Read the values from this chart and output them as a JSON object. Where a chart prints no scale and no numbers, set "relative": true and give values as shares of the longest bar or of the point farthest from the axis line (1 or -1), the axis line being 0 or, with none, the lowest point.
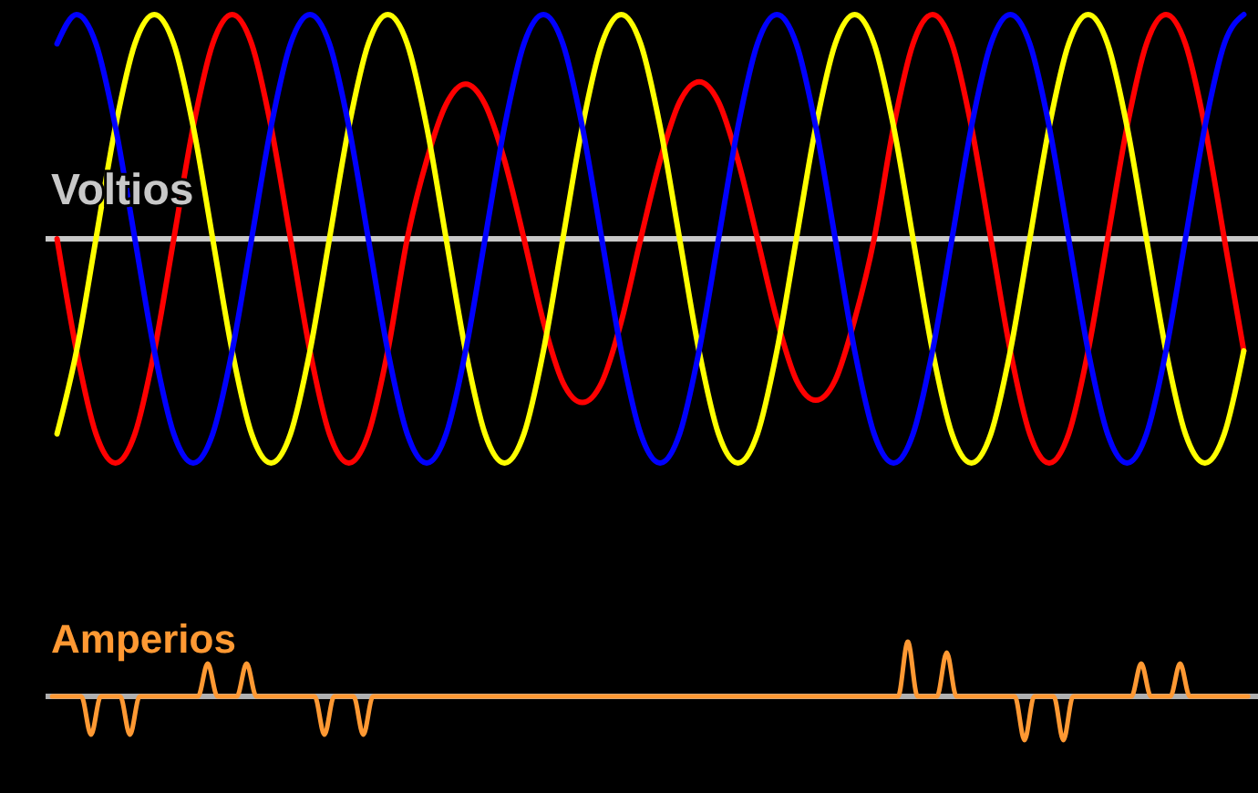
{
  "chart_data": [
    {
      "type": "line",
      "relative": true,
      "ylabel": "Voltios",
      "categories": [
        null,
        null,
        null,
        null,
        null,
        null,
        null,
        null,
        null,
        null,
        null,
        null,
        null,
        null,
        null,
        null,
        null,
        null,
        null,
        null,
        null,
        null,
        null,
        null,
        null,
        null,
        null,
        null,
        null,
        null,
        null,
        null,
        null,
        null,
        null,
        null,
        null,
        null,
        null,
        null,
        null,
        null,
        null,
        null,
        null,
        null,
        null,
        null,
        null,
        null,
        null,
        null,
        null,
        null,
        null,
        null,
        null,
        null,
        null,
        null,
        null,
        null
      ],
      "series": [
        {
          "color": "#ff0000",
          "values": [
            0,
            -0.5,
            -0.87,
            -1,
            -0.87,
            -0.5,
            0,
            0.5,
            0.87,
            1,
            0.87,
            0.5,
            0,
            -0.5,
            -0.87,
            -1,
            -0.87,
            -0.5,
            0,
            0.35,
            0.6,
            0.69,
            0.6,
            0.35,
            0,
            -0.37,
            -0.64,
            -0.73,
            -0.64,
            -0.37,
            0,
            0.35,
            0.61,
            0.7,
            0.61,
            0.35,
            0,
            -0.36,
            -0.63,
            -0.72,
            -0.63,
            -0.36,
            0,
            0.5,
            0.87,
            1,
            0.87,
            0.5,
            0,
            -0.5,
            -0.87,
            -1,
            -0.87,
            -0.5,
            0,
            0.5,
            0.87,
            1,
            0.87,
            0.5,
            0,
            -0.5
          ]
        },
        {
          "color": "#ffff00",
          "values": [
            -0.87,
            -0.5,
            0,
            0.5,
            0.87,
            1,
            0.87,
            0.5,
            0,
            -0.5,
            -0.87,
            -1,
            -0.87,
            -0.5,
            0,
            0.5,
            0.87,
            1,
            0.87,
            0.5,
            0,
            -0.5,
            -0.87,
            -1,
            -0.87,
            -0.5,
            0,
            0.5,
            0.87,
            1,
            0.87,
            0.5,
            0,
            -0.5,
            -0.87,
            -1,
            -0.87,
            -0.5,
            0,
            0.5,
            0.87,
            1,
            0.87,
            0.5,
            0,
            -0.5,
            -0.87,
            -1,
            -0.87,
            -0.5,
            0,
            0.5,
            0.87,
            1,
            0.87,
            0.5,
            0,
            -0.5,
            -0.87,
            -1,
            -0.87,
            -0.5
          ]
        },
        {
          "color": "#0000ff",
          "values": [
            0.87,
            1,
            0.87,
            0.5,
            0,
            -0.5,
            -0.87,
            -1,
            -0.87,
            -0.5,
            0,
            0.5,
            0.87,
            1,
            0.87,
            0.5,
            0,
            -0.5,
            -0.87,
            -1,
            -0.87,
            -0.5,
            0,
            0.5,
            0.87,
            1,
            0.87,
            0.5,
            0,
            -0.5,
            -0.87,
            -1,
            -0.87,
            -0.5,
            0,
            0.5,
            0.87,
            1,
            0.87,
            0.5,
            0,
            -0.5,
            -0.87,
            -1,
            -0.87,
            -0.5,
            0,
            0.5,
            0.87,
            1,
            0.87,
            0.5,
            0,
            -0.5,
            -0.87,
            -1,
            -0.87,
            -0.5,
            0,
            0.5,
            0.87,
            1
          ]
        }
      ]
    },
    {
      "type": "line",
      "relative": true,
      "ylabel": "Amperios",
      "categories": [
        null,
        null,
        null,
        null,
        null,
        null,
        null,
        null,
        null,
        null,
        null,
        null,
        null,
        null,
        null,
        null,
        null,
        null,
        null,
        null,
        null,
        null,
        null,
        null,
        null,
        null,
        null,
        null,
        null,
        null,
        null,
        null,
        null,
        null,
        null,
        null,
        null,
        null,
        null,
        null,
        null,
        null,
        null,
        null,
        null,
        null,
        null,
        null,
        null,
        null,
        null,
        null,
        null,
        null,
        null,
        null,
        null,
        null,
        null,
        null,
        null,
        null,
        null,
        null,
        null,
        null,
        null,
        null,
        null,
        null,
        null,
        null,
        null,
        null,
        null,
        null,
        null,
        null,
        null,
        null,
        null,
        null,
        null,
        null,
        null,
        null,
        null,
        null,
        null,
        null,
        null,
        null,
        null,
        null,
        null,
        null,
        null,
        null,
        null,
        null,
        null,
        null,
        null,
        null,
        null,
        null,
        null,
        null,
        null,
        null,
        null,
        null,
        null,
        null,
        null,
        null,
        null,
        null,
        null,
        null,
        null,
        null,
        null,
        null
      ],
      "series": [
        {
          "color": "#ff9933",
          "values": [
            0,
            0,
            0,
            0,
            -0.7,
            0,
            0,
            0,
            -0.7,
            0,
            0,
            0,
            0,
            0,
            0,
            0,
            0.6,
            0,
            0,
            0,
            0.6,
            0,
            0,
            0,
            0,
            0,
            0,
            0,
            -0.7,
            0,
            0,
            0,
            -0.7,
            0,
            0,
            0,
            0,
            0,
            0,
            0,
            0,
            0,
            0,
            0,
            0,
            0,
            0,
            0,
            0,
            0,
            0,
            0,
            0,
            0,
            0,
            0,
            0,
            0,
            0,
            0,
            0,
            0,
            0,
            0,
            0,
            0,
            0,
            0,
            0,
            0,
            0,
            0,
            0,
            0,
            0,
            0,
            0,
            0,
            0,
            0,
            0,
            0,
            0,
            0,
            0,
            0,
            0,
            0,
            1,
            0,
            0,
            0,
            0.8,
            0,
            0,
            0,
            0,
            0,
            0,
            0,
            -0.8,
            0,
            0,
            0,
            -0.8,
            0,
            0,
            0,
            0,
            0,
            0,
            0,
            0.6,
            0,
            0,
            0,
            0.6,
            0,
            0,
            0,
            0,
            0,
            0,
            0
          ]
        }
      ]
    }
  ]
}
